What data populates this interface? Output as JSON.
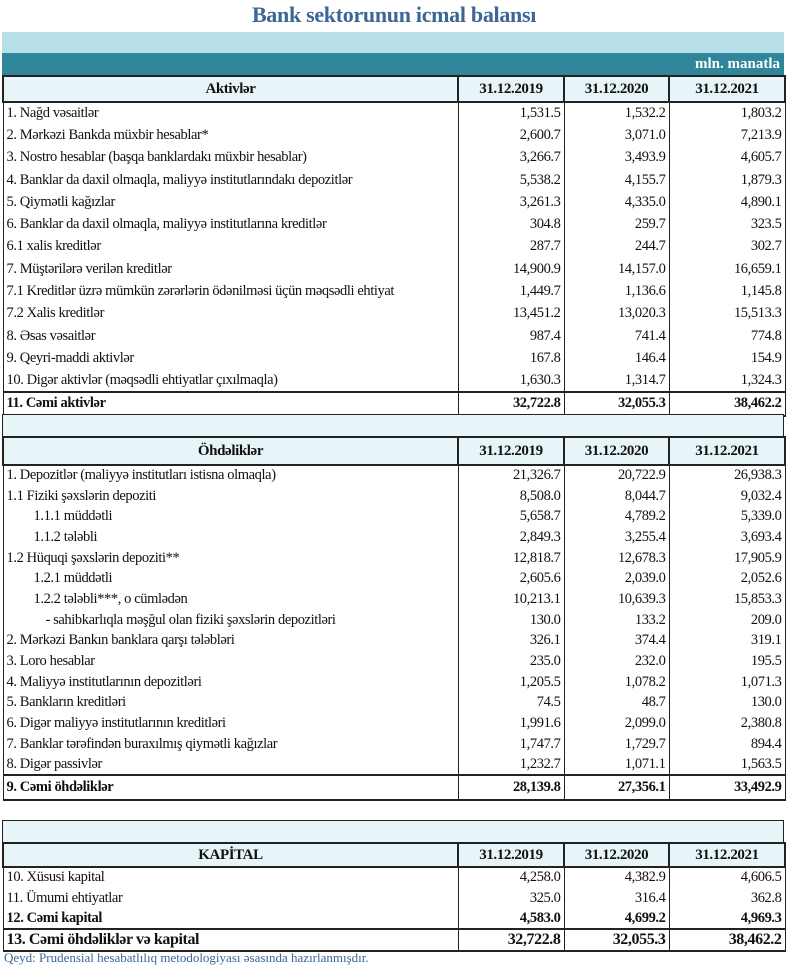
{
  "title": "Bank sektorunun icmal balansı",
  "unit": "mln. manatla",
  "footnote": "Qeyd: Prudensial hesabatlılıq metodologiyası əsasında hazırlanmışdır.",
  "colors": {
    "title": "#3d6596",
    "teal_band": "#2f8599",
    "light_band": "#b7dfe7",
    "header_bg": "#e8f5f8"
  },
  "sections": [
    {
      "header": "Aktivlər",
      "dates": [
        "31.12.2019",
        "31.12.2020",
        "31.12.2021"
      ],
      "rows": [
        {
          "label": "1. Nağd vəsaitlər",
          "values": [
            "1,531.5",
            "1,532.2",
            "1,803.2"
          ]
        },
        {
          "label": "2. Mərkəzi Bankda müxbir hesablar*",
          "values": [
            "2,600.7",
            "3,071.0",
            "7,213.9"
          ]
        },
        {
          "label": "3. Nostro hesablar (başqa banklardakı müxbir hesablar)",
          "values": [
            "3,266.7",
            "3,493.9",
            "4,605.7"
          ]
        },
        {
          "label": "4. Banklar da daxil olmaqla, maliyyə institutlarındakı depozitlər",
          "values": [
            "5,538.2",
            "4,155.7",
            "1,879.3"
          ]
        },
        {
          "label": "5. Qiymətli kağızlar",
          "values": [
            "3,261.3",
            "4,335.0",
            "4,890.1"
          ]
        },
        {
          "label": "6. Banklar da daxil olmaqla, maliyyə institutlarına kreditlər",
          "values": [
            "304.8",
            "259.7",
            "323.5"
          ]
        },
        {
          "label": "6.1 xalis kreditlər",
          "values": [
            "287.7",
            "244.7",
            "302.7"
          ]
        },
        {
          "label": "7. Müştərilərə verilən kreditlər",
          "values": [
            "14,900.9",
            "14,157.0",
            "16,659.1"
          ]
        },
        {
          "label": "7.1 Kreditlər üzrə mümkün zərərlərin ödənilməsi üçün məqsədli ehtiyat",
          "values": [
            "1,449.7",
            "1,136.6",
            "1,145.8"
          ]
        },
        {
          "label": "7.2 Xalis kreditlər",
          "values": [
            "13,451.2",
            "13,020.3",
            "15,513.3"
          ]
        },
        {
          "label": "8.  Əsas vəsaitlər",
          "values": [
            "987.4",
            "741.4",
            "774.8"
          ]
        },
        {
          "label": "9. Qeyri-maddi aktivlər",
          "values": [
            "167.8",
            "146.4",
            "154.9"
          ]
        },
        {
          "label": "10. Digər aktivlər (məqsədli ehtiyatlar çıxılmaqla)",
          "values": [
            "1,630.3",
            "1,314.7",
            "1,324.3"
          ]
        }
      ],
      "totals": [
        {
          "label": "11. Cəmi aktivlər",
          "values": [
            "32,722.8",
            "32,055.3",
            "38,462.2"
          ]
        }
      ]
    },
    {
      "header": "Öhdəliklər",
      "dates": [
        "31.12.2019",
        "31.12.2020",
        "31.12.2021"
      ],
      "rows": [
        {
          "label": " 1. Depozitlər (maliyyə institutları istisna olmaqla)",
          "values": [
            "21,326.7",
            "20,722.9",
            "26,938.3"
          ]
        },
        {
          "label": "1.1 Fiziki şəxslərin depoziti",
          "values": [
            "8,508.0",
            "8,044.7",
            "9,032.4"
          ]
        },
        {
          "label": "1.1.1 müddətli",
          "indent": 1,
          "values": [
            "5,658.7",
            "4,789.2",
            "5,339.0"
          ]
        },
        {
          "label": "1.1.2 tələbli",
          "indent": 1,
          "values": [
            "2,849.3",
            "3,255.4",
            "3,693.4"
          ]
        },
        {
          "label": "1.2 Hüquqi şəxslərin depoziti**",
          "values": [
            "12,818.7",
            "12,678.3",
            "17,905.9"
          ]
        },
        {
          "label": "1.2.1 müddətli",
          "indent": 1,
          "values": [
            "2,605.6",
            "2,039.0",
            "2,052.6"
          ]
        },
        {
          "label": "1.2.2 tələbli***, o cümlədən",
          "indent": 1,
          "values": [
            "10,213.1",
            "10,639.3",
            "15,853.3"
          ]
        },
        {
          "label": "- sahibkarlıqla məşğul olan fiziki şəxslərin depozitləri",
          "indent": 2,
          "values": [
            "130.0",
            "133.2",
            "209.0"
          ]
        },
        {
          "label": "2. Mərkəzi Bankın banklara qarşı tələbləri",
          "values": [
            "326.1",
            "374.4",
            "319.1"
          ]
        },
        {
          "label": "3. Loro hesablar",
          "values": [
            "235.0",
            "232.0",
            "195.5"
          ]
        },
        {
          "label": "4. Maliyyə institutlarının  depozitləri",
          "values": [
            "1,205.5",
            "1,078.2",
            "1,071.3"
          ]
        },
        {
          "label": "5. Bankların kreditləri",
          "values": [
            "74.5",
            "48.7",
            "130.0"
          ]
        },
        {
          "label": "6. Digər maliyyə institutlarının kreditləri",
          "values": [
            "1,991.6",
            "2,099.0",
            "2,380.8"
          ]
        },
        {
          "label": "7. Banklar tərəfindən buraxılmış qiymətli kağızlar",
          "values": [
            "1,747.7",
            "1,729.7",
            "894.4"
          ]
        },
        {
          "label": "8. Digər passivlər",
          "values": [
            "1,232.7",
            "1,071.1",
            "1,563.5"
          ]
        }
      ],
      "totals": [
        {
          "label": " 9. Cəmi öhdəliklər",
          "values": [
            "28,139.8",
            "27,356.1",
            "33,492.9"
          ]
        }
      ]
    },
    {
      "header": "KAPİTAL",
      "dates": [
        "31.12.2019",
        "31.12.2020",
        "31.12.2021"
      ],
      "rows": [
        {
          "label": "10. Xüsusi kapital",
          "values": [
            "4,258.0",
            "4,382.9",
            "4,606.5"
          ]
        },
        {
          "label": "11. Ümumi ehtiyatlar",
          "values": [
            "325.0",
            "316.4",
            "362.8"
          ]
        },
        {
          "label": "12. Cəmi kapital",
          "bold": true,
          "values": [
            "4,583.0",
            "4,699.2",
            "4,969.3"
          ]
        }
      ],
      "totals": [
        {
          "label": "13. Cəmi öhdəliklər və kapital",
          "values": [
            "32,722.8",
            "32,055.3",
            "38,462.2"
          ]
        }
      ]
    }
  ]
}
